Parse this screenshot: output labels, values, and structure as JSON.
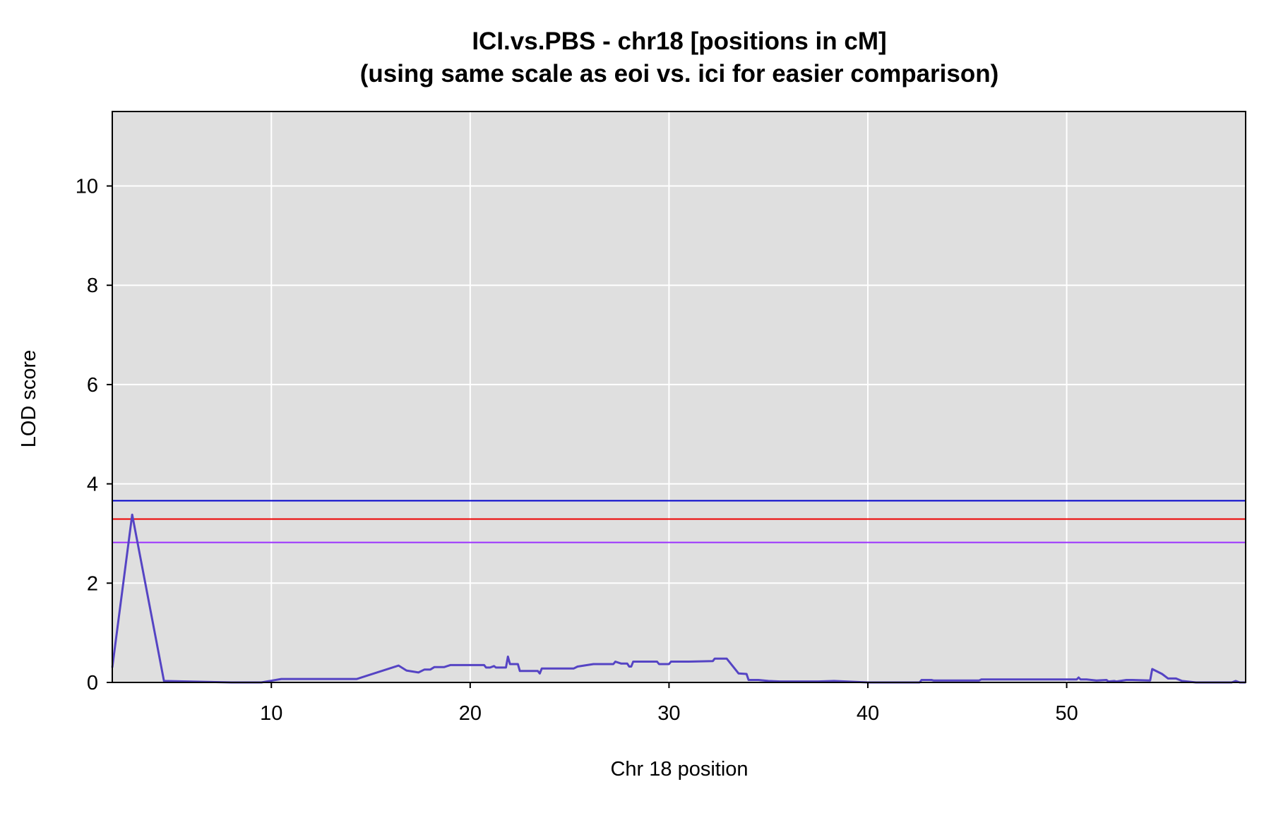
{
  "chart_data": {
    "type": "line",
    "title": "ICI.vs.PBS - chr18 [positions in cM]",
    "subtitle": "(using same scale as eoi vs. ici for easier comparison)",
    "xlabel": "Chr 18 position",
    "ylabel": "LOD score",
    "xlim": [
      2,
      59
    ],
    "ylim": [
      0,
      11.5
    ],
    "xticks": [
      10,
      20,
      30,
      40,
      50
    ],
    "yticks": [
      0,
      2,
      4,
      6,
      8,
      10
    ],
    "grid": true,
    "plot_background": "#dfdfdf",
    "grid_color": "#ffffff",
    "thresholds": [
      {
        "value": 3.66,
        "color": "#0000cc"
      },
      {
        "value": 3.29,
        "color": "#ee0000"
      },
      {
        "value": 2.82,
        "color": "#9b30ff"
      }
    ],
    "series": [
      {
        "color": "#5544c4",
        "x": [
          2.0,
          3.0,
          4.6,
          8.0,
          9.5,
          10.5,
          12.0,
          14.3,
          16.4,
          16.8,
          17.4,
          17.7,
          18.0,
          18.2,
          18.7,
          19.0,
          20.7,
          20.8,
          21.0,
          21.2,
          21.3,
          21.8,
          21.9,
          22.0,
          22.4,
          22.5,
          23.4,
          23.5,
          23.6,
          25.2,
          25.4,
          26.2,
          27.2,
          27.3,
          27.6,
          27.9,
          28.0,
          28.1,
          28.2,
          29.4,
          29.5,
          30.0,
          30.1,
          31.0,
          32.2,
          32.3,
          32.9,
          33.5,
          33.9,
          34.0,
          34.5,
          35.0,
          35.6,
          37.5,
          38.3,
          40.0,
          42.6,
          42.7,
          43.2,
          43.3,
          45.6,
          45.7,
          48.0,
          50.5,
          50.6,
          50.7,
          51.0,
          51.5,
          52.0,
          52.1,
          52.4,
          52.5,
          53.0,
          53.3,
          54.2,
          54.3,
          54.8,
          55.1,
          55.5,
          55.8,
          56.5,
          57.5,
          58.3,
          58.5,
          58.7,
          59.0
        ],
        "y": [
          0.3,
          3.38,
          0.03,
          0.0,
          0.0,
          0.07,
          0.07,
          0.07,
          0.34,
          0.24,
          0.2,
          0.26,
          0.26,
          0.31,
          0.31,
          0.35,
          0.35,
          0.3,
          0.3,
          0.33,
          0.3,
          0.3,
          0.52,
          0.37,
          0.37,
          0.23,
          0.23,
          0.18,
          0.28,
          0.28,
          0.32,
          0.37,
          0.37,
          0.42,
          0.38,
          0.38,
          0.32,
          0.32,
          0.42,
          0.42,
          0.37,
          0.37,
          0.42,
          0.42,
          0.43,
          0.48,
          0.48,
          0.18,
          0.17,
          0.05,
          0.05,
          0.03,
          0.02,
          0.02,
          0.03,
          0.0,
          0.0,
          0.05,
          0.05,
          0.04,
          0.04,
          0.06,
          0.06,
          0.06,
          0.1,
          0.06,
          0.06,
          0.04,
          0.05,
          0.02,
          0.03,
          0.02,
          0.05,
          0.05,
          0.04,
          0.27,
          0.17,
          0.08,
          0.08,
          0.03,
          0.0,
          0.0,
          0.0,
          0.03,
          0.0,
          0.0
        ]
      }
    ]
  }
}
